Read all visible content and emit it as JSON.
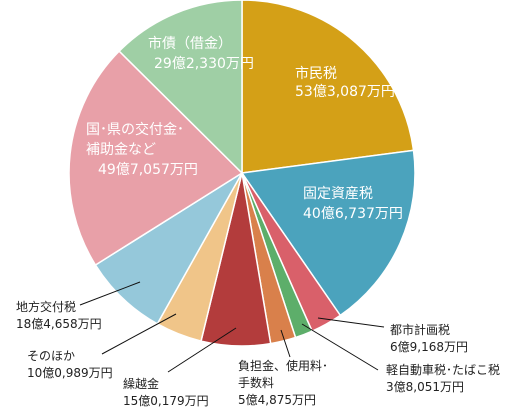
{
  "chart_data": {
    "type": "pie",
    "unit": "万円",
    "slices": [
      {
        "label_lines": [
          "市民税",
          "53億3,087万円"
        ],
        "value": 533087,
        "color": "#D4A017"
      },
      {
        "label_lines": [
          "固定資産税",
          "40億6,737万円"
        ],
        "value": 406737,
        "color": "#4BA3BD"
      },
      {
        "label_lines": [
          "都市計画税",
          "6億9,168万円"
        ],
        "value": 69168,
        "color": "#D9606A"
      },
      {
        "label_lines": [
          "軽自動車税･たばこ税",
          "3億8,051万円"
        ],
        "value": 38051,
        "color": "#5DAE6A"
      },
      {
        "label_lines": [
          "負担金、使用料･",
          "手数料",
          "5億4,875万円"
        ],
        "value": 54875,
        "color": "#D9804B"
      },
      {
        "label_lines": [
          "繰越金",
          "15億0,179万円"
        ],
        "value": 150179,
        "color": "#B33C3C"
      },
      {
        "label_lines": [
          "そのほか",
          "10億0,989万円"
        ],
        "value": 100989,
        "color": "#F0C589"
      },
      {
        "label_lines": [
          "地方交付税",
          "18億4,658万円"
        ],
        "value": 184658,
        "color": "#95C8DA"
      },
      {
        "label_lines": [
          "国･県の交付金･",
          "補助金など",
          "49億7,057万円"
        ],
        "value": 497057,
        "color": "#E8A0A8"
      },
      {
        "label_lines": [
          "市債（借金）",
          "29億2,330万円"
        ],
        "value": 292330,
        "color": "#9FCFA5"
      }
    ]
  }
}
